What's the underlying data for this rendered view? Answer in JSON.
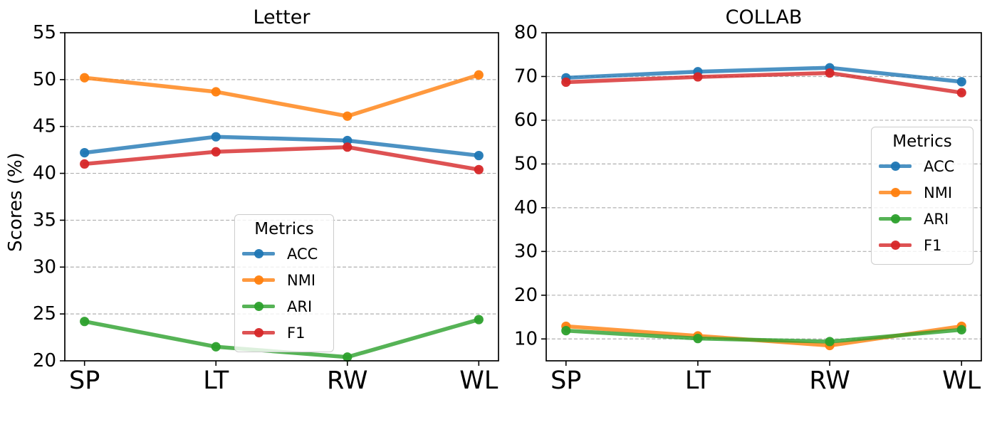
{
  "figure": {
    "background": "#ffffff",
    "axis_color": "#000000"
  },
  "chart_data": [
    {
      "type": "line",
      "title": "Letter",
      "ylabel": "Scores (%)",
      "xlabel": "",
      "categories": [
        "SP",
        "LT",
        "RW",
        "WL"
      ],
      "series": [
        {
          "name": "ACC",
          "color": "#1f77b4",
          "values": [
            42.2,
            43.9,
            43.5,
            41.9
          ]
        },
        {
          "name": "NMI",
          "color": "#ff7f0e",
          "values": [
            50.2,
            48.7,
            46.1,
            50.5
          ]
        },
        {
          "name": "ARI",
          "color": "#2ca02c",
          "values": [
            24.2,
            21.5,
            20.4,
            24.4
          ]
        },
        {
          "name": "F1",
          "color": "#d62728",
          "values": [
            41.0,
            42.3,
            42.8,
            40.4
          ]
        }
      ],
      "ylim": [
        20,
        55
      ],
      "yticks": [
        20,
        25,
        30,
        35,
        40,
        45,
        50,
        55
      ],
      "grid": true,
      "grid_color": "#b0b0b0",
      "grid_style": "dashed",
      "legend": {
        "title": "Metrics",
        "position": "lower-center-inside"
      }
    },
    {
      "type": "line",
      "title": "COLLAB",
      "ylabel": "",
      "xlabel": "",
      "categories": [
        "SP",
        "LT",
        "RW",
        "WL"
      ],
      "series": [
        {
          "name": "ACC",
          "color": "#1f77b4",
          "values": [
            69.7,
            71.1,
            72.0,
            68.8
          ]
        },
        {
          "name": "NMI",
          "color": "#ff7f0e",
          "values": [
            12.9,
            10.7,
            8.5,
            12.9
          ]
        },
        {
          "name": "ARI",
          "color": "#2ca02c",
          "values": [
            11.9,
            10.1,
            9.4,
            12.1
          ]
        },
        {
          "name": "F1",
          "color": "#d62728",
          "values": [
            68.7,
            69.9,
            70.8,
            66.3
          ]
        }
      ],
      "ylim": [
        5,
        80
      ],
      "yticks": [
        10,
        20,
        30,
        40,
        50,
        60,
        70,
        80
      ],
      "grid": true,
      "grid_color": "#b0b0b0",
      "grid_style": "dashed",
      "legend": {
        "title": "Metrics",
        "position": "center-right-inside"
      }
    }
  ]
}
